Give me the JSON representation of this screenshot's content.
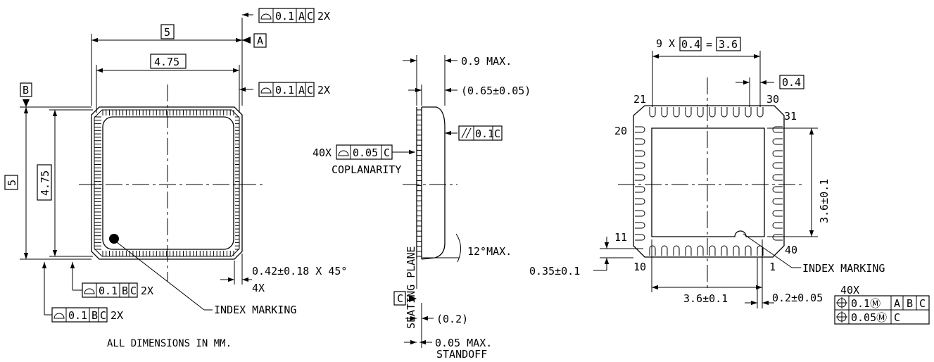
{
  "top_view": {
    "dim_width": "5",
    "dim_width_inner": "4.75",
    "dim_height": "5",
    "dim_height_inner": "4.75",
    "datum_a": "A",
    "datum_b": "B",
    "fcf_top_1": {
      "tol": "0.1",
      "datums": [
        "A",
        "C"
      ],
      "mult": "2X"
    },
    "fcf_top_2": {
      "tol": "0.1",
      "datums": [
        "A",
        "C"
      ],
      "mult": "2X"
    },
    "fcf_bottom_1": {
      "tol": "0.1",
      "datums": [
        "B",
        "C"
      ],
      "mult": "2X"
    },
    "fcf_bottom_2": {
      "tol": "0.1",
      "datums": [
        "B",
        "C"
      ],
      "mult": "2X"
    },
    "chamfer": "0.42±0.18 X 45°",
    "chamfer_mult": "4X",
    "index_marking": "INDEX MARKING",
    "note": "ALL DIMENSIONS IN MM."
  },
  "side_view": {
    "max_height": "0.9 MAX.",
    "body_height": "(0.65±0.05)",
    "parallelism_tol": "0.1",
    "parallelism_datum": "C",
    "coplanarity_mult": "40X",
    "coplanarity_tol": "0.05",
    "coplanarity_datum": "C",
    "coplanarity_label": "COPLANARITY",
    "seating_plane": "SEATING PLANE",
    "angle": "12°MAX.",
    "datum_c": "C",
    "lead_thickness": "(0.2)",
    "standoff": "0.05 MAX.",
    "standoff_label": "STANDOFF"
  },
  "bottom_view": {
    "pitch_count": "9 X",
    "pitch": "0.4",
    "pitch_total": "3.6",
    "pitch_single": "0.4",
    "pin_21": "21",
    "pin_30": "30",
    "pin_31": "31",
    "pin_20": "20",
    "pin_11": "11",
    "pin_10": "10",
    "pin_1": "1",
    "pin_40": "40",
    "pad_height": "3.6±0.1",
    "pad_width": "3.6±0.1",
    "lead_offset": "0.35±0.1",
    "lead_width": "0.2±0.05",
    "index_marking": "INDEX MARKING",
    "pos_mult": "40X",
    "pos_row_1": {
      "tol": "0.1Ⓜ",
      "datums": [
        "A",
        "B",
        "C"
      ]
    },
    "pos_row_2": {
      "tol": "0.05Ⓜ",
      "datums": [
        "C"
      ]
    }
  }
}
